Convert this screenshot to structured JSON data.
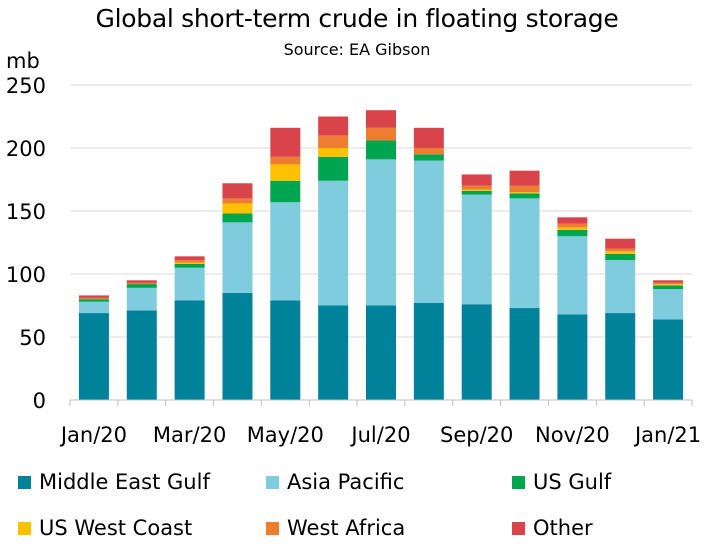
{
  "chart_data": {
    "type": "bar",
    "stacked": true,
    "title": "Global short-term crude in floating storage",
    "subtitle": "Source: EA Gibson",
    "ylabel": "mb",
    "xlabel": "",
    "ylim": [
      0,
      250
    ],
    "yticks": [
      0,
      50,
      100,
      150,
      200,
      250
    ],
    "grid": true,
    "legend_position": "bottom",
    "categories": [
      "Jan/20",
      "Feb/20",
      "Mar/20",
      "Apr/20",
      "May/20",
      "Jun/20",
      "Jul/20",
      "Aug/20",
      "Sep/20",
      "Oct/20",
      "Nov/20",
      "Dec/20",
      "Jan/21"
    ],
    "xtick_labels": [
      "Jan/20",
      "Mar/20",
      "May/20",
      "Jul/20",
      "Sep/20",
      "Nov/20",
      "Jan/21"
    ],
    "series": [
      {
        "name": "Middle East Gulf",
        "color": "#00829B",
        "values": [
          69,
          71,
          79,
          85,
          79,
          75,
          75,
          77,
          76,
          73,
          68,
          69,
          64
        ]
      },
      {
        "name": "Asia Pacific",
        "color": "#7FCCDF",
        "values": [
          9,
          18,
          26,
          56,
          78,
          99,
          116,
          113,
          87,
          87,
          62,
          42,
          24
        ]
      },
      {
        "name": "US Gulf",
        "color": "#00A550",
        "values": [
          2,
          3,
          3,
          7,
          17,
          19,
          15,
          5,
          3,
          4,
          5,
          5,
          3
        ]
      },
      {
        "name": "US West Coast",
        "color": "#FFC000",
        "values": [
          0,
          0,
          1,
          8,
          13,
          7,
          0,
          0,
          1,
          1,
          2,
          2,
          1
        ]
      },
      {
        "name": "West Africa",
        "color": "#ED7D31",
        "values": [
          1,
          1,
          2,
          4,
          6,
          10,
          10,
          5,
          3,
          5,
          3,
          2,
          1
        ]
      },
      {
        "name": "Other",
        "color": "#D9444A",
        "values": [
          2,
          2,
          3,
          12,
          23,
          15,
          14,
          16,
          9,
          12,
          5,
          8,
          2
        ]
      }
    ]
  }
}
